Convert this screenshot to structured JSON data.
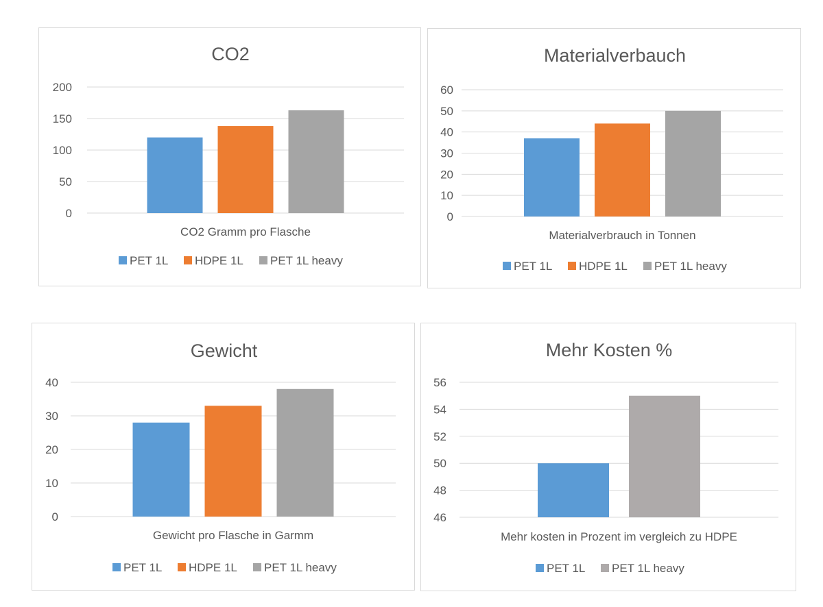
{
  "colors": {
    "pet_1l": "#5b9bd5",
    "hdpe_1l": "#ed7d31",
    "pet_1l_heavy": "#a5a5a5",
    "pet_1l_heavy_alt": "#aeaaaa"
  },
  "chart_data": [
    {
      "type": "bar",
      "title": "CO2",
      "xlabel": "CO2 Gramm pro Flasche",
      "ylabel": "",
      "ylim": [
        0,
        200
      ],
      "yticks": [
        "0",
        "50",
        "100",
        "150",
        "200"
      ],
      "grid": true,
      "legend": "bottom",
      "series": [
        {
          "name": "PET 1L",
          "value": 120,
          "color": "#5b9bd5"
        },
        {
          "name": "HDPE 1L",
          "value": 138,
          "color": "#ed7d31"
        },
        {
          "name": "PET 1L heavy",
          "value": 163,
          "color": "#a5a5a5"
        }
      ]
    },
    {
      "type": "bar",
      "title": "Materialverbauch",
      "xlabel": "Materialverbrauch in Tonnen",
      "ylabel": "",
      "ylim": [
        0,
        60
      ],
      "yticks": [
        "0",
        "10",
        "20",
        "30",
        "40",
        "50",
        "60"
      ],
      "grid": true,
      "legend": "bottom",
      "series": [
        {
          "name": "PET 1L",
          "value": 37,
          "color": "#5b9bd5"
        },
        {
          "name": "HDPE 1L",
          "value": 44,
          "color": "#ed7d31"
        },
        {
          "name": "PET 1L heavy",
          "value": 50,
          "color": "#a5a5a5"
        }
      ]
    },
    {
      "type": "bar",
      "title": "Gewicht",
      "xlabel": "Gewicht pro Flasche in Garmm",
      "ylabel": "",
      "ylim": [
        0,
        40
      ],
      "yticks": [
        "0",
        "10",
        "20",
        "30",
        "40"
      ],
      "grid": true,
      "legend": "bottom",
      "series": [
        {
          "name": "PET 1L",
          "value": 28,
          "color": "#5b9bd5"
        },
        {
          "name": "HDPE 1L",
          "value": 33,
          "color": "#ed7d31"
        },
        {
          "name": "PET 1L heavy",
          "value": 38,
          "color": "#a5a5a5"
        }
      ]
    },
    {
      "type": "bar",
      "title": "Mehr Kosten %",
      "xlabel": "Mehr kosten in Prozent im vergleich zu HDPE",
      "ylabel": "",
      "ylim": [
        46,
        56
      ],
      "yticks": [
        "46",
        "48",
        "50",
        "52",
        "54",
        "56"
      ],
      "grid": true,
      "legend": "bottom",
      "series": [
        {
          "name": "PET 1L",
          "value": 50,
          "color": "#5b9bd5"
        },
        {
          "name": "PET 1L heavy",
          "value": 55,
          "color": "#aeaaaa"
        }
      ]
    }
  ]
}
